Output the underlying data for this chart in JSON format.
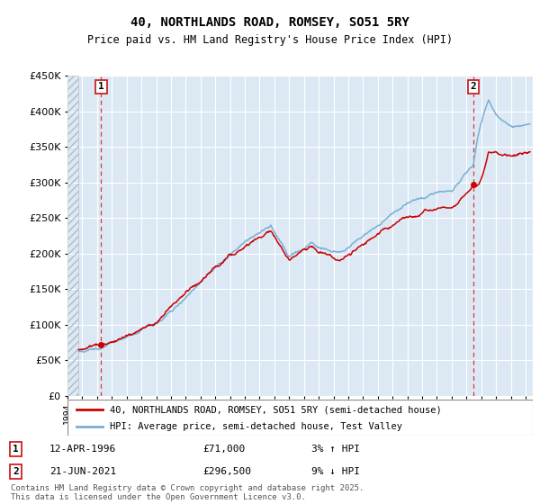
{
  "title1": "40, NORTHLANDS ROAD, ROMSEY, SO51 5RY",
  "title2": "Price paid vs. HM Land Registry's House Price Index (HPI)",
  "legend_line1": "40, NORTHLANDS ROAD, ROMSEY, SO51 5RY (semi-detached house)",
  "legend_line2": "HPI: Average price, semi-detached house, Test Valley",
  "annotation1_label": "1",
  "annotation1_date": "12-APR-1996",
  "annotation1_price": "£71,000",
  "annotation1_pct": "3% ↑ HPI",
  "annotation1_year": 1996.28,
  "annotation1_value": 71000,
  "annotation2_label": "2",
  "annotation2_date": "21-JUN-2021",
  "annotation2_price": "£296,500",
  "annotation2_pct": "9% ↓ HPI",
  "annotation2_year": 2021.47,
  "annotation2_value": 296500,
  "footer": "Contains HM Land Registry data © Crown copyright and database right 2025.\nThis data is licensed under the Open Government Licence v3.0.",
  "xmin": 1994.0,
  "xmax": 2025.5,
  "ymin": 0,
  "ymax": 450000,
  "data_start": 1994.75,
  "plot_bg_color": "#dce9f5",
  "hatch_color": "#b0bac4",
  "grid_color": "#ffffff",
  "red_line_color": "#cc0000",
  "blue_line_color": "#7aafd4",
  "annotation_box_color": "#cc2222"
}
